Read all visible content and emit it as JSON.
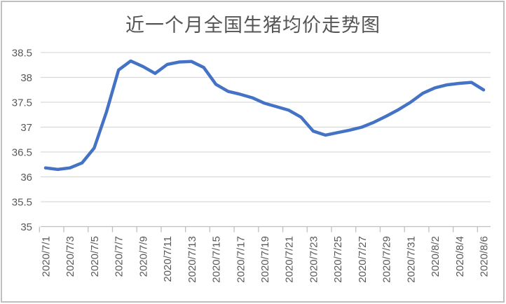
{
  "chart_data": {
    "type": "line",
    "title": "近一个月全国生猪均价走势图",
    "x": [
      "2020/7/1",
      "2020/7/2",
      "2020/7/3",
      "2020/7/4",
      "2020/7/5",
      "2020/7/6",
      "2020/7/7",
      "2020/7/8",
      "2020/7/9",
      "2020/7/10",
      "2020/7/11",
      "2020/7/12",
      "2020/7/13",
      "2020/7/14",
      "2020/7/15",
      "2020/7/16",
      "2020/7/17",
      "2020/7/18",
      "2020/7/19",
      "2020/7/20",
      "2020/7/21",
      "2020/7/22",
      "2020/7/23",
      "2020/7/24",
      "2020/7/25",
      "2020/7/26",
      "2020/7/27",
      "2020/7/28",
      "2020/7/29",
      "2020/7/30",
      "2020/7/31",
      "2020/8/1",
      "2020/8/2",
      "2020/8/3",
      "2020/8/4",
      "2020/8/5",
      "2020/8/6"
    ],
    "values": [
      36.18,
      36.15,
      36.18,
      36.28,
      36.58,
      37.3,
      38.15,
      38.33,
      38.22,
      38.08,
      38.26,
      38.31,
      38.32,
      38.2,
      37.86,
      37.72,
      37.66,
      37.59,
      37.48,
      37.41,
      37.34,
      37.2,
      36.92,
      36.84,
      36.89,
      36.94,
      37.0,
      37.1,
      37.22,
      37.35,
      37.5,
      37.68,
      37.79,
      37.85,
      37.88,
      37.9,
      37.75
    ],
    "x_tick_labels": [
      "2020/7/1",
      "2020/7/3",
      "2020/7/5",
      "2020/7/7",
      "2020/7/9",
      "2020/7/11",
      "2020/7/13",
      "2020/7/15",
      "2020/7/17",
      "2020/7/19",
      "2020/7/21",
      "2020/7/23",
      "2020/7/25",
      "2020/7/27",
      "2020/7/29",
      "2020/7/31",
      "2020/8/2",
      "2020/8/4",
      "2020/8/6"
    ],
    "x_tick_step": 2,
    "ylim": [
      35,
      38.5
    ],
    "y_tick_step": 0.5,
    "y_tick_labels": [
      "35",
      "35.5",
      "36",
      "36.5",
      "37",
      "37.5",
      "38",
      "38.5"
    ],
    "xlabel": "",
    "ylabel": "",
    "grid": true,
    "legend": "none",
    "line_color": "#4472C4",
    "grid_color": "#D9D9D9",
    "axis_color": "#BFBFBF",
    "text_color": "#595959",
    "title_color": "#555555",
    "border_color": "#BFBFBF",
    "background_color": "#FFFFFF"
  }
}
